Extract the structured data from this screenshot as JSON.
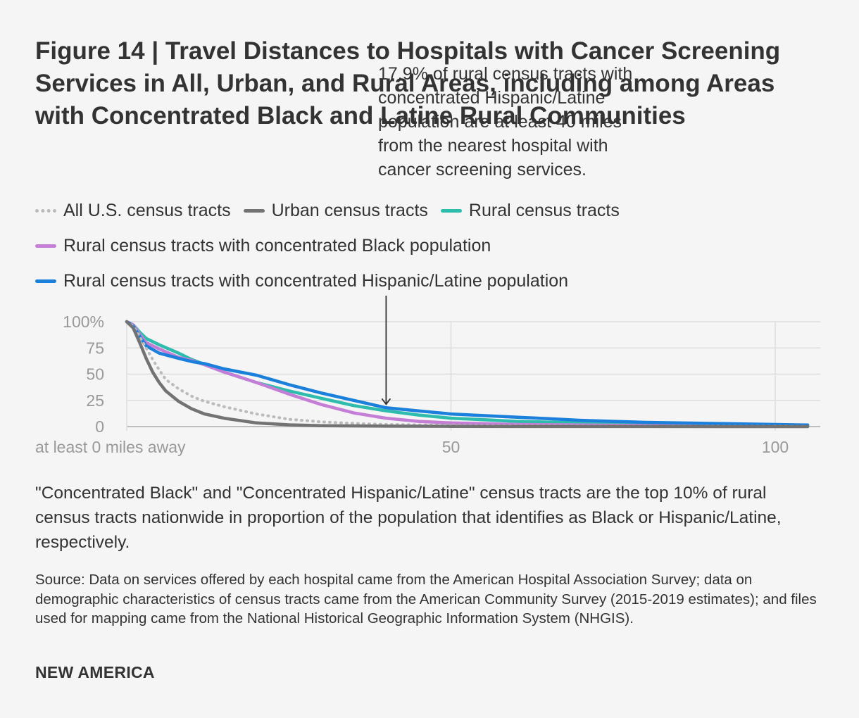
{
  "title": "Figure 14 | Travel Distances to Hospitals with Cancer Screening Services in All, Urban, and Rural Areas, including among Areas with Concentrated Black and Latine Rural Communities",
  "annotation": "17.9% of rural census tracts with concentrated Hispanic/Latine population are at least 40 miles from the nearest hospital with cancer screening services.",
  "note": "\"Concentrated Black\" and \"Concentrated Hispanic/Latine\" census tracts are the top 10% of rural census tracts nationwide in proportion of the population that identifies as Black or Hispanic/Latine, respectively.",
  "source": "Source: Data on services offered by each hospital came from the American Hospital Association Survey; data on demographic characteristics of census tracts came from the American Community Survey (2015-2019 estimates); and files used for mapping came from the National Historical Geographic Information System (NHGIS).",
  "brand": "NEW AMERICA",
  "legend": [
    {
      "label": "All U.S. census tracts",
      "color": "#bbbbbb",
      "style": "dotted"
    },
    {
      "label": "Urban census tracts",
      "color": "#737373",
      "style": "solid"
    },
    {
      "label": "Rural census tracts",
      "color": "#2ebdad",
      "style": "solid"
    },
    {
      "label": "Rural census tracts with concentrated Black population",
      "color": "#c47ed6",
      "style": "solid"
    },
    {
      "label": "Rural census tracts with concentrated Hispanic/Latine population",
      "color": "#1a80db",
      "style": "solid"
    }
  ],
  "chart_data": {
    "type": "line",
    "xlabel": "",
    "ylabel": "",
    "xlim": [
      0,
      107
    ],
    "ylim": [
      0,
      100
    ],
    "x_ticks": [
      {
        "value": 0,
        "label": "at least 0 miles away"
      },
      {
        "value": 50,
        "label": "50"
      },
      {
        "value": 100,
        "label": "100"
      }
    ],
    "y_ticks": [
      {
        "value": 100,
        "label": "100%"
      },
      {
        "value": 75,
        "label": "75"
      },
      {
        "value": 50,
        "label": "50"
      },
      {
        "value": 25,
        "label": "25"
      },
      {
        "value": 0,
        "label": "0"
      }
    ],
    "annotation_point": {
      "x": 40,
      "y": 17.9
    },
    "series": [
      {
        "name": "All U.S. census tracts",
        "color": "#bbbbbb",
        "style": "dotted",
        "x": [
          0,
          1,
          2,
          3,
          4,
          5,
          6,
          8,
          10,
          12,
          15,
          20,
          25,
          30,
          35,
          40,
          50,
          60,
          80,
          105
        ],
        "values": [
          100,
          96,
          86,
          75,
          64,
          54,
          45,
          36,
          29,
          24,
          19,
          12,
          7,
          4.5,
          3,
          2,
          1.2,
          0.8,
          0.5,
          0.3
        ]
      },
      {
        "name": "Urban census tracts",
        "color": "#737373",
        "style": "solid",
        "x": [
          0,
          1,
          2,
          3,
          4,
          5,
          6,
          8,
          10,
          12,
          15,
          20,
          25,
          30,
          40,
          50,
          60,
          80,
          105
        ],
        "values": [
          100,
          94,
          80,
          65,
          52,
          42,
          34,
          24,
          17,
          12,
          8,
          3.5,
          1.7,
          0.9,
          0.4,
          0.2,
          0.1,
          0.05,
          0
        ]
      },
      {
        "name": "Rural census tracts",
        "color": "#2ebdad",
        "style": "solid",
        "x": [
          0,
          1,
          2,
          3,
          5,
          8,
          10,
          15,
          20,
          25,
          30,
          35,
          40,
          45,
          50,
          55,
          60,
          70,
          80,
          90,
          105
        ],
        "values": [
          100,
          97,
          90,
          84,
          78,
          70,
          64,
          52,
          42,
          34,
          27,
          20,
          15,
          11,
          8,
          6.5,
          5,
          3.5,
          2.5,
          1.8,
          1
        ]
      },
      {
        "name": "Rural census tracts with concentrated Black population",
        "color": "#c47ed6",
        "style": "solid",
        "x": [
          0,
          1,
          2,
          3,
          5,
          8,
          10,
          12,
          15,
          20,
          25,
          30,
          35,
          40,
          45,
          50,
          60,
          80,
          105
        ],
        "values": [
          100,
          97,
          88,
          80,
          74,
          66,
          63,
          59,
          52,
          42,
          31,
          21,
          13,
          8,
          5,
          3.5,
          2,
          1,
          0.5
        ]
      },
      {
        "name": "Rural census tracts with concentrated Hispanic/Latine population",
        "color": "#1a80db",
        "style": "solid",
        "x": [
          0,
          1,
          2,
          3,
          5,
          8,
          10,
          12,
          15,
          20,
          25,
          30,
          35,
          40,
          45,
          50,
          55,
          60,
          65,
          70,
          75,
          80,
          90,
          100,
          105
        ],
        "values": [
          100,
          96,
          86,
          77,
          70,
          65,
          62,
          60,
          55,
          49,
          40,
          32,
          25,
          17.9,
          15,
          12,
          10.5,
          9,
          7.5,
          6,
          5,
          4,
          3,
          2,
          1.5
        ]
      }
    ]
  }
}
